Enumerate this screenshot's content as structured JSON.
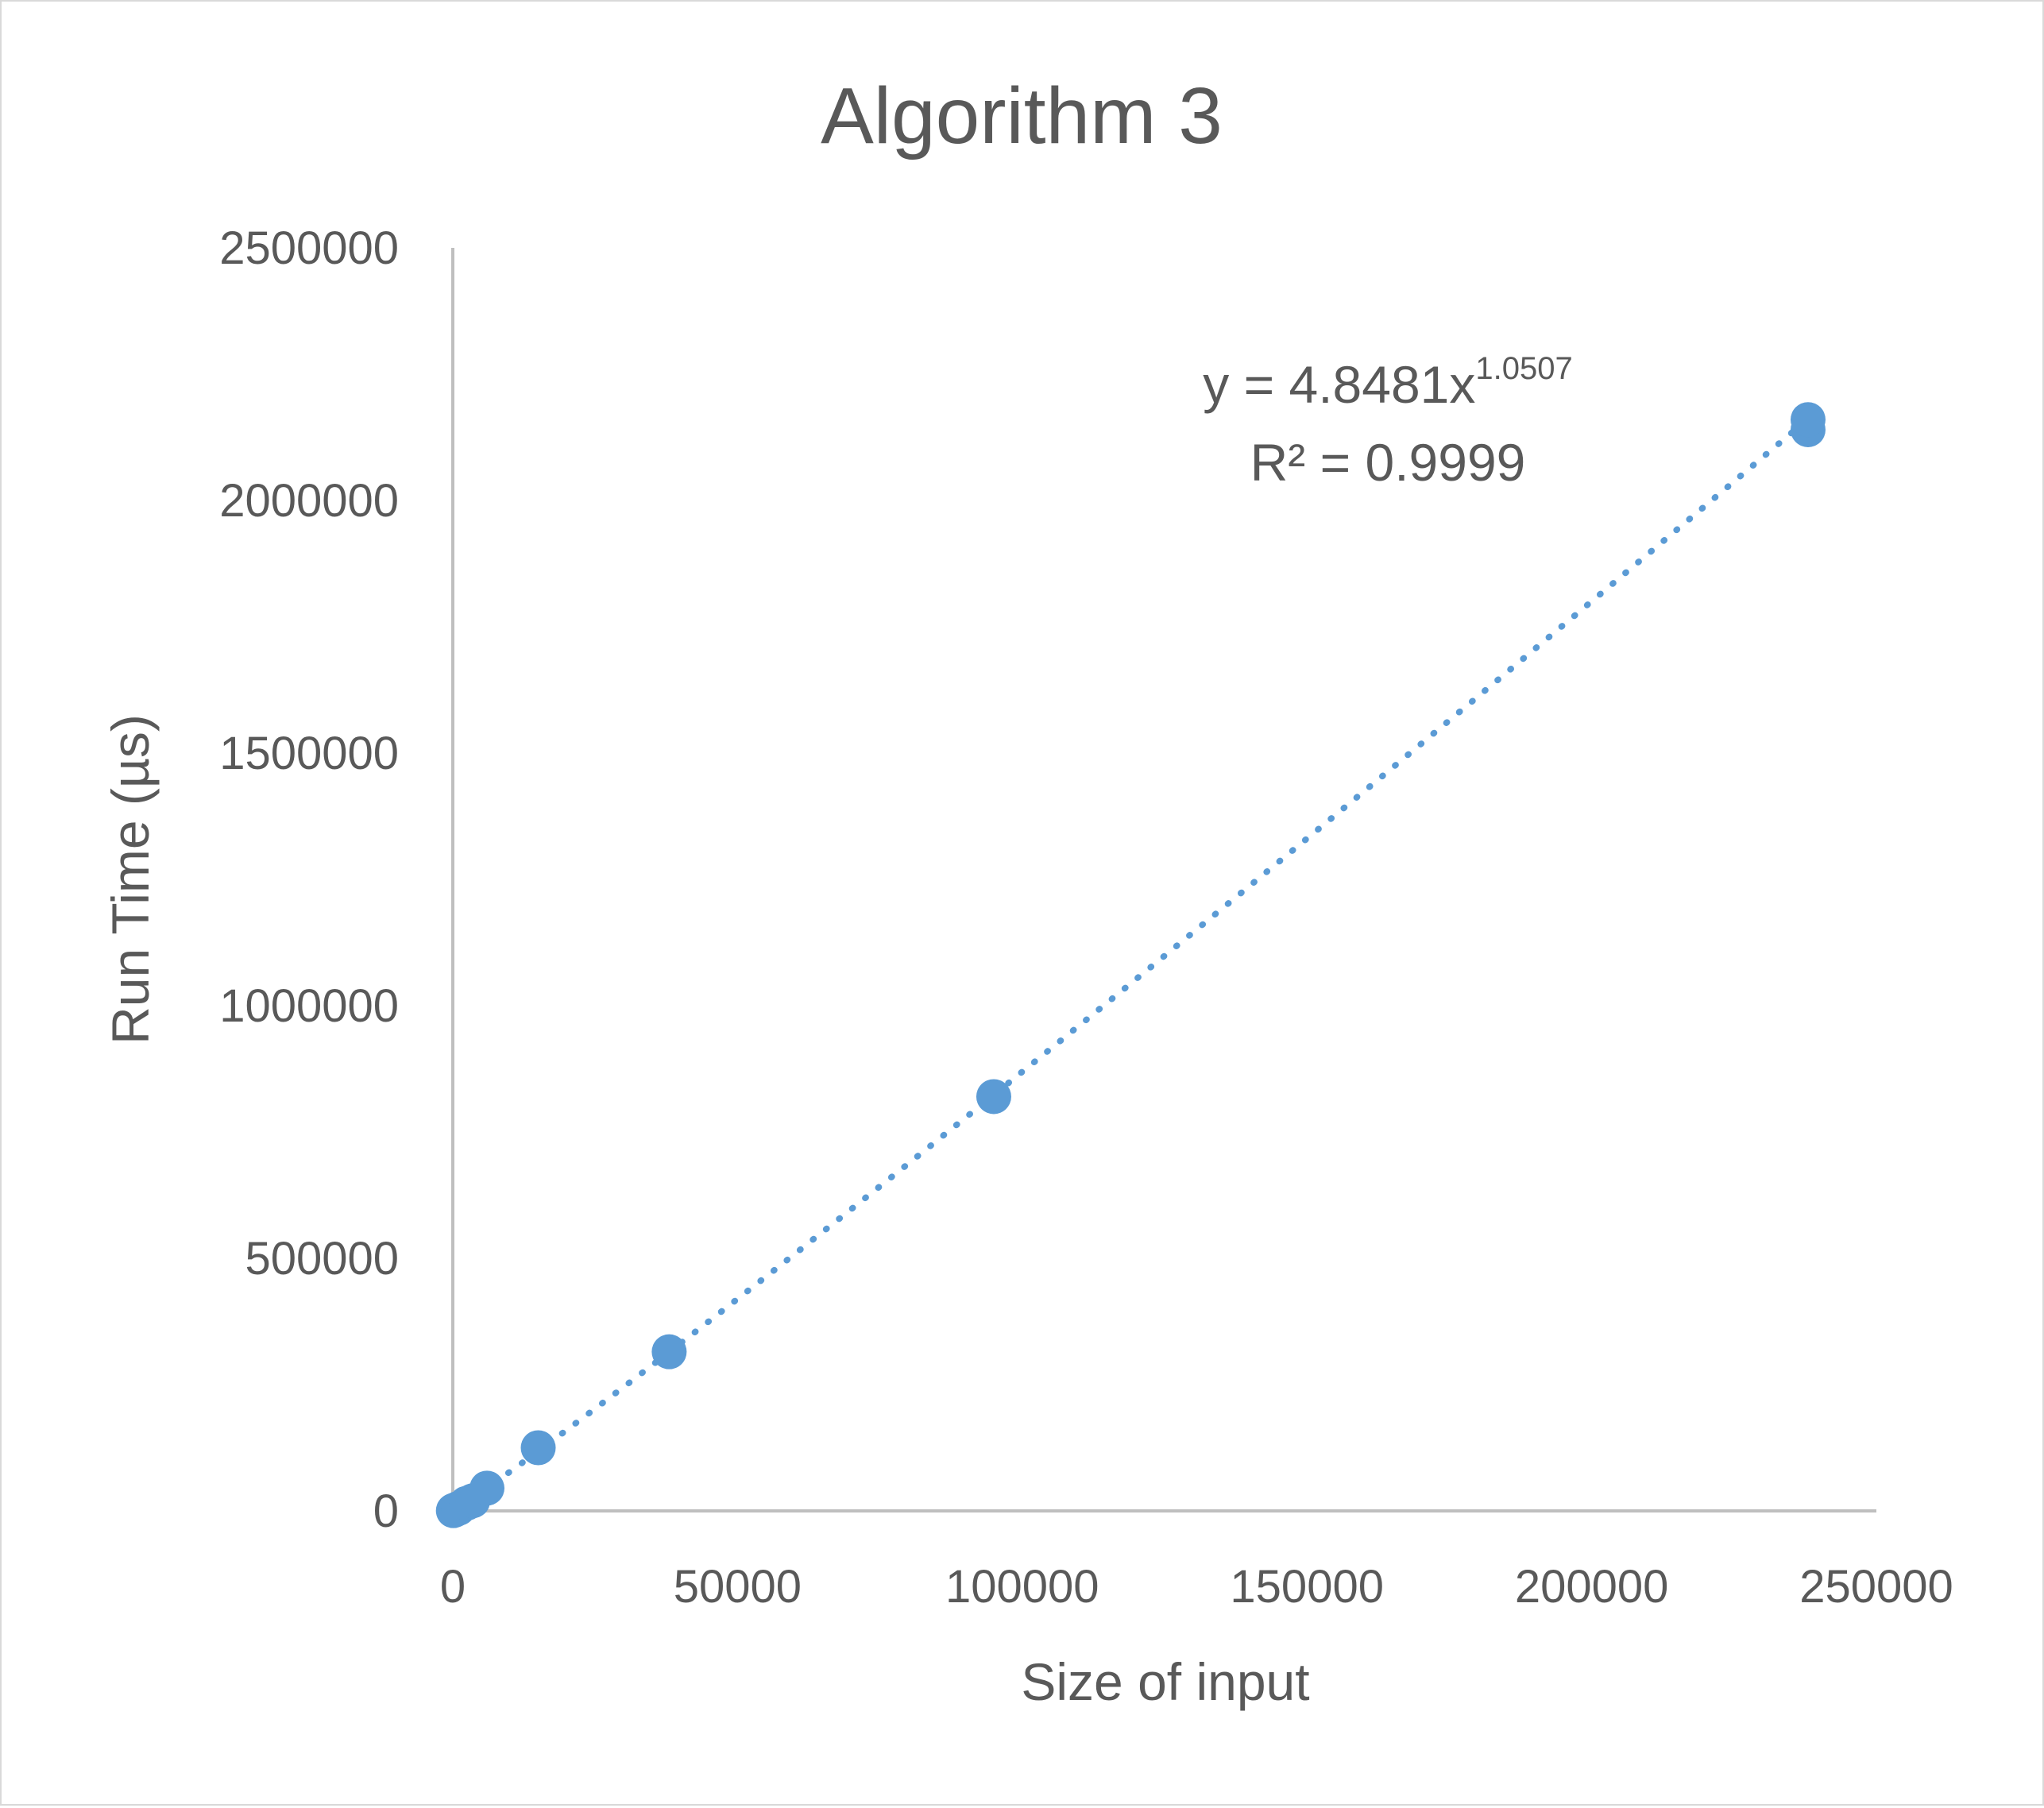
{
  "chart_data": {
    "type": "scatter",
    "title": "Algorithm 3",
    "xlabel": "Size of input",
    "ylabel": "Run Time (µs)",
    "xlim": [
      0,
      250000
    ],
    "ylim": [
      0,
      2500000
    ],
    "x_ticks": [
      "0",
      "50000",
      "100000",
      "150000",
      "200000",
      "250000"
    ],
    "y_ticks": [
      "0",
      "500000",
      "1000000",
      "1500000",
      "2000000",
      "2500000"
    ],
    "grid": false,
    "legend": "none",
    "series": [
      {
        "color": "#5b9bd5",
        "points": [
          {
            "x": 100,
            "y": 500
          },
          {
            "x": 400,
            "y": 2000
          },
          {
            "x": 1000,
            "y": 5000
          },
          {
            "x": 2400,
            "y": 15000
          },
          {
            "x": 3500,
            "y": 20000
          },
          {
            "x": 6000,
            "y": 45000
          },
          {
            "x": 15000,
            "y": 125000
          },
          {
            "x": 38000,
            "y": 315000
          },
          {
            "x": 95000,
            "y": 820000
          },
          {
            "x": 238000,
            "y": 2140000
          },
          {
            "x": 238000,
            "y": 2160000
          }
        ]
      }
    ],
    "trendline": {
      "type": "power",
      "style": "dotted",
      "coefficient": 4.8481,
      "exponent": 1.0507,
      "equation_prefix": "y = 4.8481x",
      "equation_exponent": "1.0507",
      "r_squared_label": "R² = 0.9999"
    }
  }
}
